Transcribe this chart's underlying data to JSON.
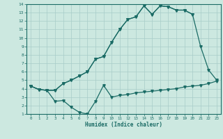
{
  "xlabel": "Humidex (Indice chaleur)",
  "bg_color": "#cce8e0",
  "grid_color": "#a8ccc8",
  "line_color": "#1a6b65",
  "xlim": [
    -0.5,
    23.5
  ],
  "ylim": [
    1,
    14
  ],
  "xticks": [
    0,
    1,
    2,
    3,
    4,
    5,
    6,
    7,
    8,
    9,
    10,
    11,
    12,
    13,
    14,
    15,
    16,
    17,
    18,
    19,
    20,
    21,
    22,
    23
  ],
  "yticks": [
    1,
    2,
    3,
    4,
    5,
    6,
    7,
    8,
    9,
    10,
    11,
    12,
    13,
    14
  ],
  "line1_x": [
    0,
    1,
    2,
    3,
    4,
    5,
    6,
    7,
    8,
    9,
    10,
    11,
    12,
    13,
    14,
    15,
    16,
    17,
    18,
    19,
    20
  ],
  "line1_y": [
    4.3,
    3.9,
    3.8,
    3.8,
    4.6,
    5.0,
    5.5,
    6.0,
    7.5,
    7.8,
    9.5,
    11.0,
    12.2,
    12.5,
    13.8,
    12.8,
    13.8,
    13.7,
    13.3,
    13.3,
    12.8
  ],
  "line2_x": [
    0,
    1,
    2,
    3,
    4,
    5,
    6,
    7,
    8,
    9,
    10,
    11,
    12,
    13,
    14,
    15,
    16,
    17,
    18,
    19,
    20,
    21,
    22,
    23
  ],
  "line2_y": [
    4.3,
    3.9,
    3.8,
    3.8,
    4.6,
    5.0,
    5.5,
    6.0,
    7.5,
    7.8,
    9.5,
    11.0,
    12.2,
    12.5,
    13.8,
    12.8,
    13.8,
    13.7,
    13.3,
    13.3,
    12.8,
    9.0,
    6.2,
    5.0
  ],
  "line3_x": [
    0,
    1,
    2,
    3,
    4,
    5,
    6,
    7,
    8,
    9,
    10,
    11,
    12,
    13,
    14,
    15,
    16,
    17,
    18,
    19,
    20,
    21,
    22,
    23
  ],
  "line3_y": [
    4.3,
    3.9,
    3.8,
    2.5,
    2.6,
    1.8,
    1.2,
    1.0,
    2.5,
    4.4,
    3.0,
    3.2,
    3.3,
    3.5,
    3.6,
    3.7,
    3.8,
    3.9,
    4.0,
    4.2,
    4.3,
    4.4,
    4.6,
    4.9
  ]
}
